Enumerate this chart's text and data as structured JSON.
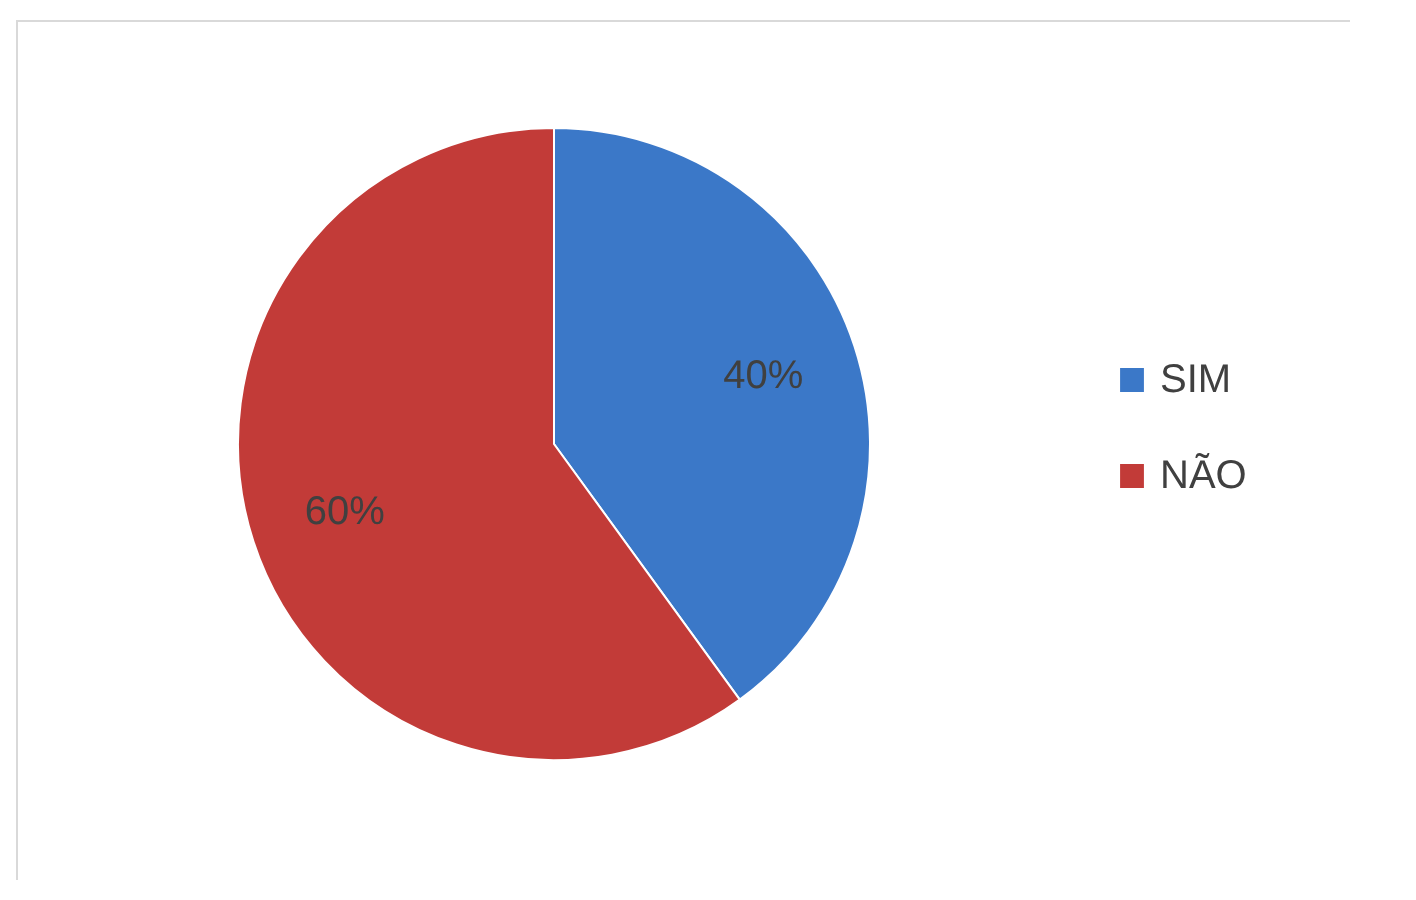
{
  "chart_data": {
    "type": "pie",
    "categories": [
      "SIM",
      "NÃO"
    ],
    "values": [
      40,
      60
    ],
    "colors": [
      "#3b78c8",
      "#c23b38"
    ],
    "value_labels": [
      "40%",
      "60%"
    ],
    "legend": "right"
  }
}
